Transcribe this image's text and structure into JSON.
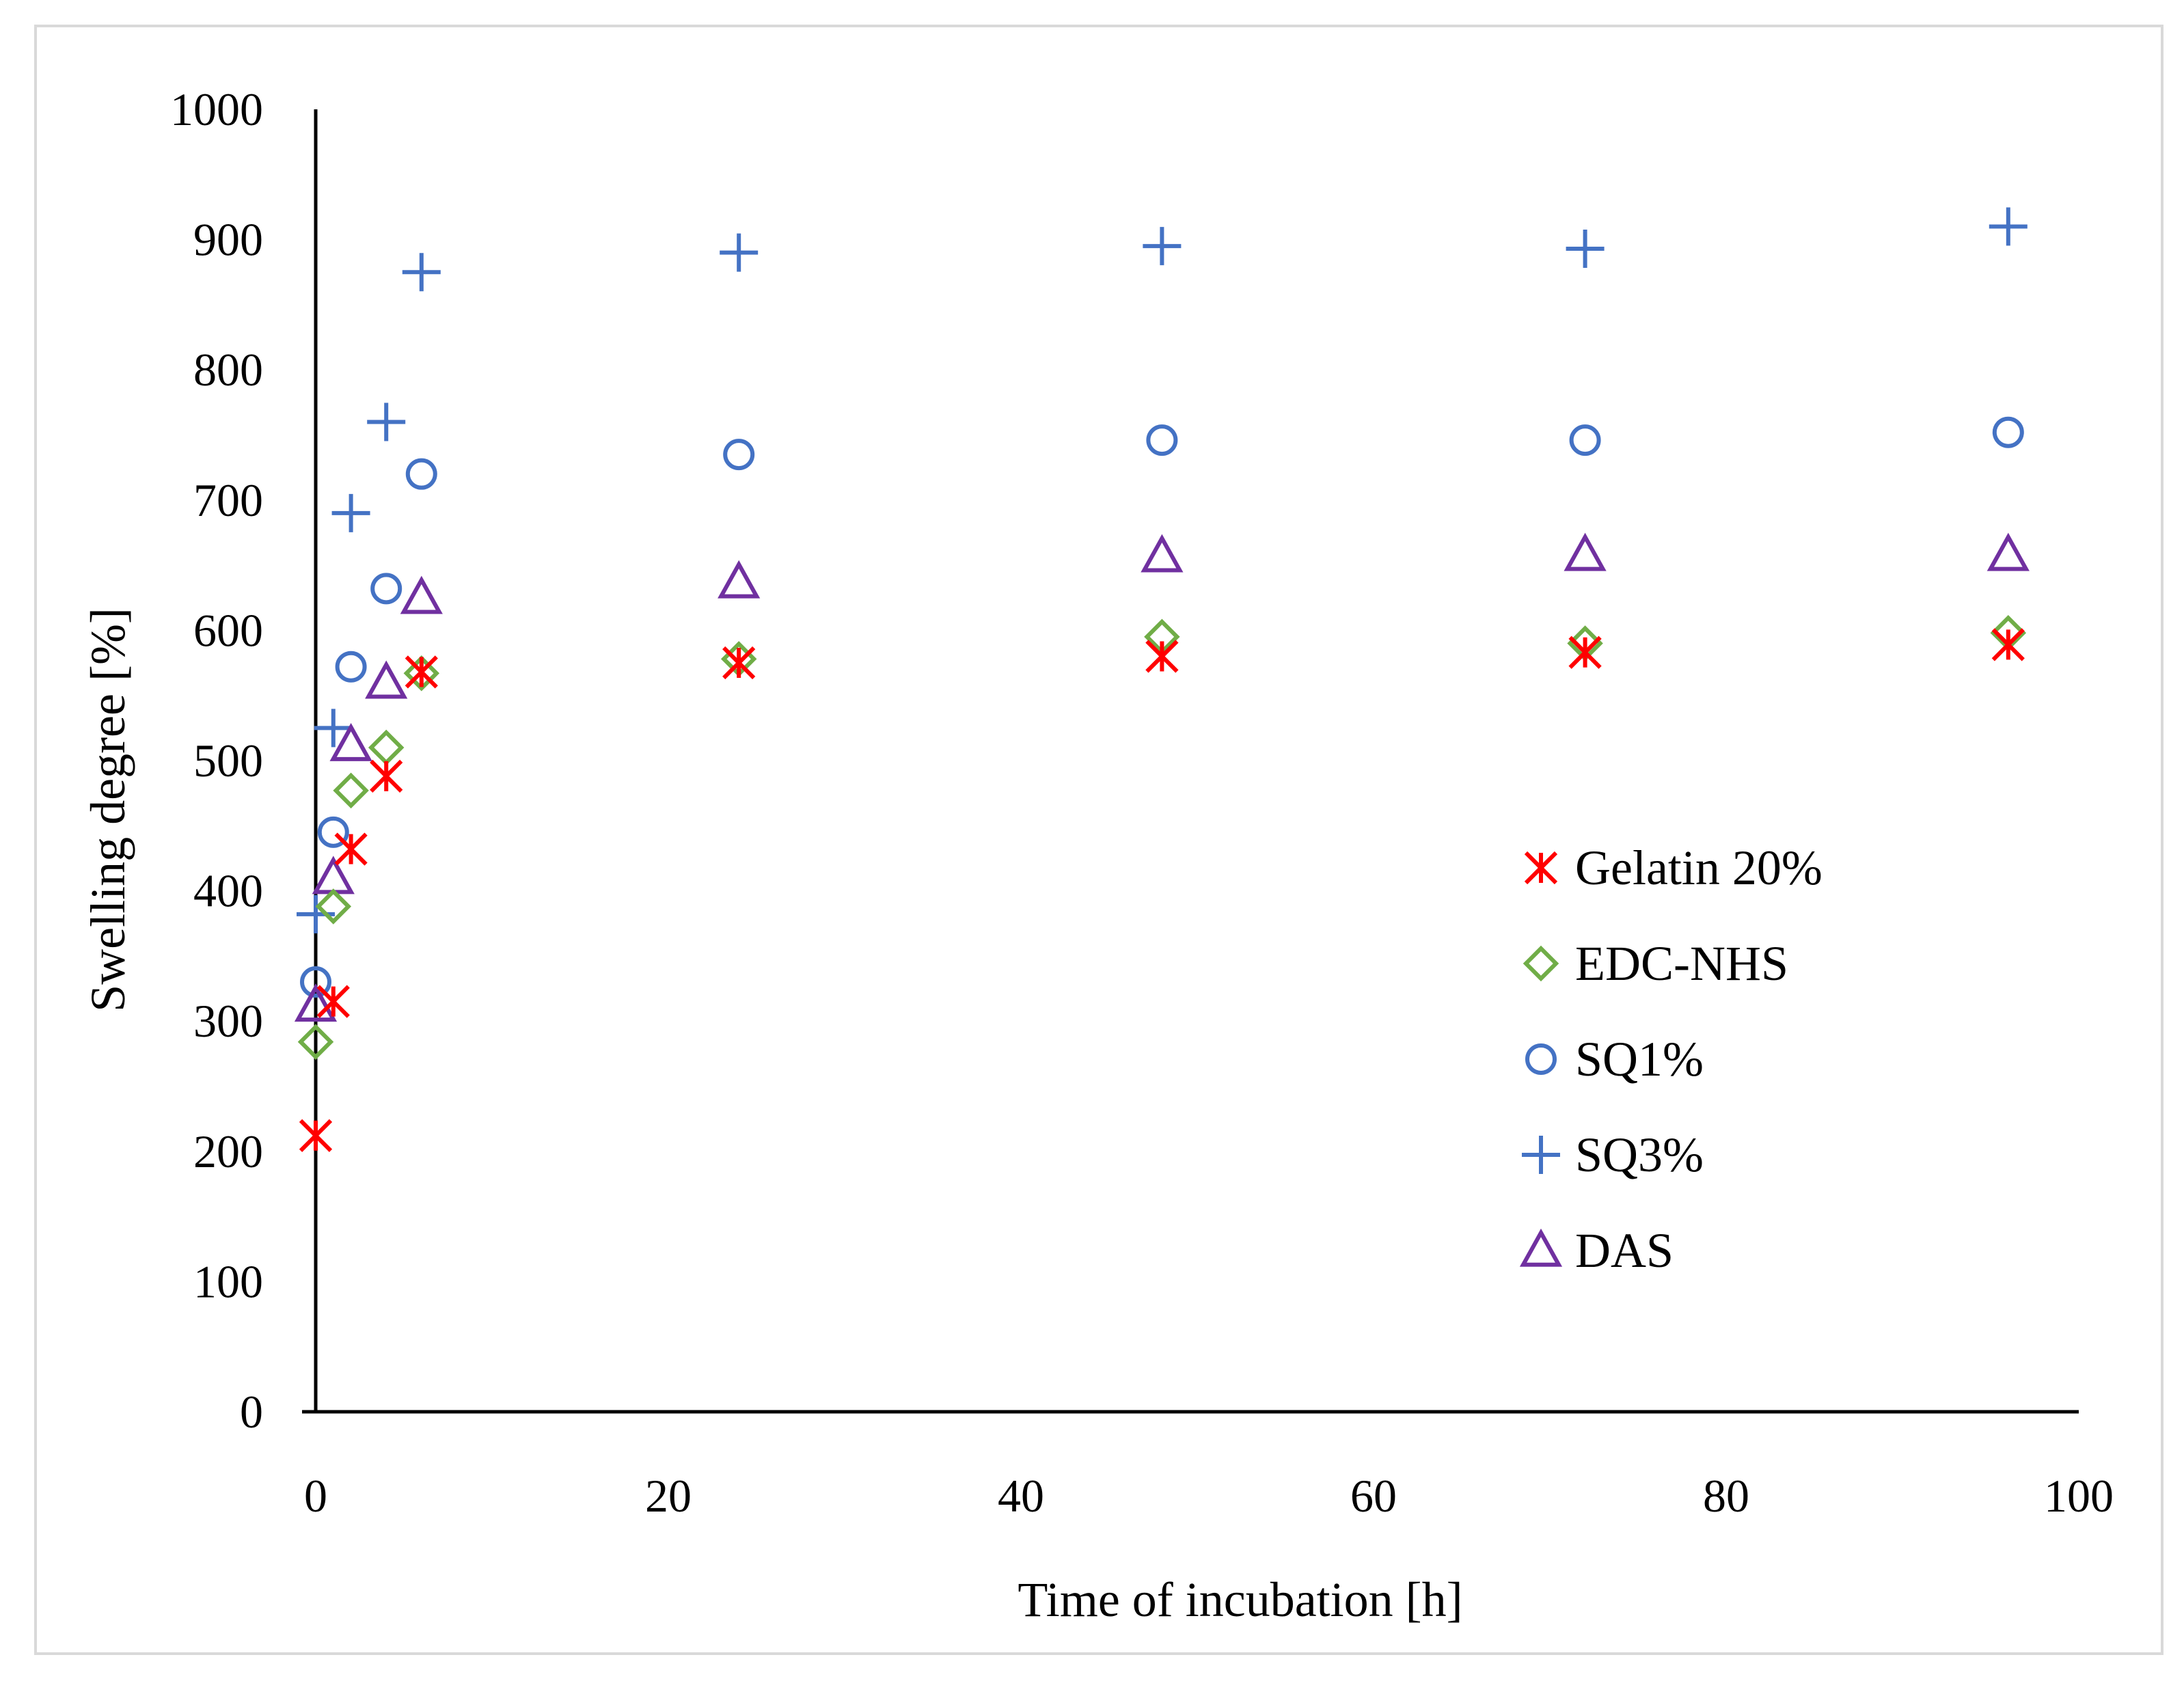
{
  "chart_data": {
    "type": "scatter",
    "title": "",
    "xlabel": "Time of incubation [h]",
    "ylabel": "Swelling degree [%]",
    "xlim": [
      0,
      100
    ],
    "ylim": [
      0,
      1000
    ],
    "xticks": [
      0,
      20,
      40,
      60,
      80,
      100
    ],
    "yticks": [
      0,
      100,
      200,
      300,
      400,
      500,
      600,
      700,
      800,
      900,
      1000
    ],
    "xtick_labels": [
      "0",
      "20",
      "40",
      "60",
      "80",
      "100"
    ],
    "ytick_labels": [
      "0",
      "100",
      "200",
      "300",
      "400",
      "500",
      "600",
      "700",
      "800",
      "900",
      "1000"
    ],
    "grid": false,
    "legend_position": "right",
    "series": [
      {
        "name": "Gelatin 20%",
        "marker": "asterisk",
        "color": "#ff0000",
        "x": [
          0,
          1,
          2,
          4,
          6,
          24,
          48,
          72,
          96
        ],
        "y": [
          212,
          315,
          432,
          488,
          568,
          575,
          580,
          583,
          589
        ]
      },
      {
        "name": "EDC-NHS",
        "marker": "diamond",
        "color": "#70ad47",
        "x": [
          0,
          1,
          2,
          4,
          6,
          24,
          48,
          72,
          96
        ],
        "y": [
          284,
          388,
          477,
          510,
          567,
          578,
          595,
          590,
          598
        ]
      },
      {
        "name": "SQ1%",
        "marker": "circle",
        "color": "#4472c4",
        "x": [
          0,
          1,
          2,
          4,
          6,
          24,
          48,
          72,
          96
        ],
        "y": [
          330,
          445,
          572,
          632,
          720,
          735,
          746,
          746,
          752
        ]
      },
      {
        "name": "SQ3%",
        "marker": "plus",
        "color": "#4472c4",
        "x": [
          0,
          1,
          2,
          4,
          6,
          24,
          48,
          72,
          96
        ],
        "y": [
          382,
          525,
          690,
          760,
          875,
          890,
          895,
          893,
          910
        ]
      },
      {
        "name": "DAS",
        "marker": "triangle",
        "color": "#7030a0",
        "x": [
          0,
          1,
          2,
          4,
          6,
          24,
          48,
          72,
          96
        ],
        "y": [
          312,
          410,
          512,
          560,
          625,
          637,
          657,
          658,
          658
        ]
      }
    ]
  }
}
